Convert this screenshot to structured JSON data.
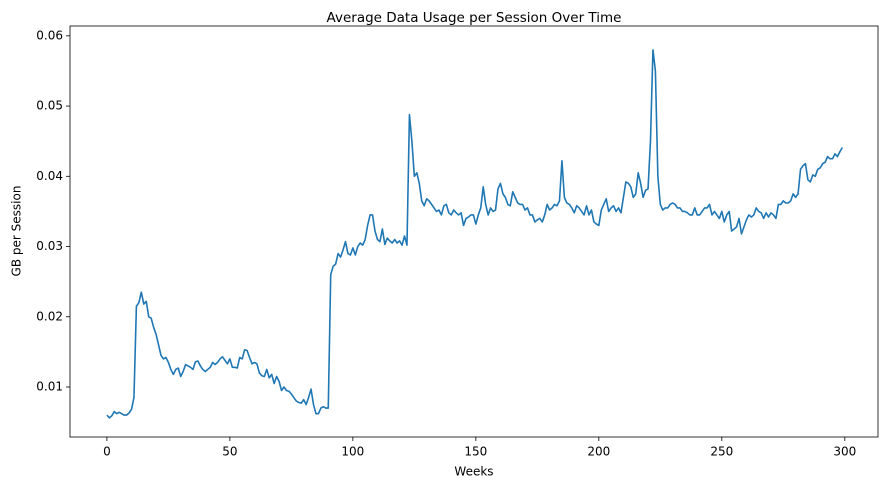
{
  "chart_data": {
    "type": "line",
    "title": "Average Data Usage per Session Over Time",
    "x_label": "Weeks",
    "y_label": "GB per Session",
    "x": [
      0,
      1,
      2,
      3,
      4,
      5,
      6,
      7,
      8,
      9,
      10,
      11,
      12,
      13,
      14,
      15,
      16,
      17,
      18,
      19,
      20,
      21,
      22,
      23,
      24,
      25,
      26,
      27,
      28,
      29,
      30,
      31,
      32,
      33,
      34,
      35,
      36,
      37,
      38,
      39,
      40,
      41,
      42,
      43,
      44,
      45,
      46,
      47,
      48,
      49,
      50,
      51,
      52,
      53,
      54,
      55,
      56,
      57,
      58,
      59,
      60,
      61,
      62,
      63,
      64,
      65,
      66,
      67,
      68,
      69,
      70,
      71,
      72,
      73,
      74,
      75,
      76,
      77,
      78,
      79,
      80,
      81,
      82,
      83,
      84,
      85,
      86,
      87,
      88,
      89,
      90,
      91,
      92,
      93,
      94,
      95,
      96,
      97,
      98,
      99,
      100,
      101,
      102,
      103,
      104,
      105,
      106,
      107,
      108,
      109,
      110,
      111,
      112,
      113,
      114,
      115,
      116,
      117,
      118,
      119,
      120,
      121,
      122,
      123,
      124,
      125,
      126,
      127,
      128,
      129,
      130,
      131,
      132,
      133,
      134,
      135,
      136,
      137,
      138,
      139,
      140,
      141,
      142,
      143,
      144,
      145,
      146,
      147,
      148,
      149,
      150,
      151,
      152,
      153,
      154,
      155,
      156,
      157,
      158,
      159,
      160,
      161,
      162,
      163,
      164,
      165,
      166,
      167,
      168,
      169,
      170,
      171,
      172,
      173,
      174,
      175,
      176,
      177,
      178,
      179,
      180,
      181,
      182,
      183,
      184,
      185,
      186,
      187,
      188,
      189,
      190,
      191,
      192,
      193,
      194,
      195,
      196,
      197,
      198,
      199,
      200,
      201,
      202,
      203,
      204,
      205,
      206,
      207,
      208,
      209,
      210,
      211,
      212,
      213,
      214,
      215,
      216,
      217,
      218,
      219,
      220,
      221,
      222,
      223,
      224,
      225,
      226,
      227,
      228,
      229,
      230,
      231,
      232,
      233,
      234,
      235,
      236,
      237,
      238,
      239,
      240,
      241,
      242,
      243,
      244,
      245,
      246,
      247,
      248,
      249,
      250,
      251,
      252,
      253,
      254,
      255,
      256,
      257,
      258,
      259,
      260,
      261,
      262,
      263,
      264,
      265,
      266,
      267,
      268,
      269,
      270,
      271,
      272,
      273,
      274,
      275,
      276,
      277,
      278,
      279,
      280,
      281,
      282,
      283,
      284,
      285,
      286,
      287,
      288,
      289,
      290,
      291,
      292,
      293,
      294,
      295,
      296,
      297,
      298,
      299
    ],
    "series": [
      {
        "color": "#1f77b4",
        "values": [
          0.006,
          0.0056,
          0.0059,
          0.0065,
          0.0062,
          0.0064,
          0.0062,
          0.006,
          0.006,
          0.0063,
          0.0068,
          0.0085,
          0.0215,
          0.022,
          0.0235,
          0.0218,
          0.0222,
          0.02,
          0.0198,
          0.0185,
          0.0175,
          0.016,
          0.0145,
          0.014,
          0.0142,
          0.0135,
          0.0125,
          0.0118,
          0.0125,
          0.0127,
          0.0115,
          0.0122,
          0.0132,
          0.013,
          0.0128,
          0.0125,
          0.0136,
          0.0137,
          0.013,
          0.0125,
          0.0122,
          0.0125,
          0.0128,
          0.0135,
          0.0132,
          0.0135,
          0.014,
          0.0143,
          0.0138,
          0.0133,
          0.014,
          0.0128,
          0.0128,
          0.0127,
          0.0142,
          0.014,
          0.0153,
          0.0152,
          0.0142,
          0.0133,
          0.0135,
          0.0133,
          0.012,
          0.0116,
          0.0115,
          0.0125,
          0.0113,
          0.0118,
          0.0105,
          0.0115,
          0.0108,
          0.0095,
          0.01,
          0.0095,
          0.0094,
          0.009,
          0.0085,
          0.008,
          0.0078,
          0.0077,
          0.0082,
          0.0075,
          0.0085,
          0.0097,
          0.0075,
          0.0062,
          0.0062,
          0.007,
          0.0072,
          0.007,
          0.007,
          0.026,
          0.0272,
          0.0275,
          0.029,
          0.0285,
          0.0295,
          0.0307,
          0.029,
          0.0288,
          0.0298,
          0.0288,
          0.03,
          0.0305,
          0.0302,
          0.031,
          0.033,
          0.0345,
          0.0345,
          0.0322,
          0.031,
          0.0307,
          0.0325,
          0.0303,
          0.0312,
          0.0308,
          0.0305,
          0.031,
          0.0305,
          0.0308,
          0.0302,
          0.0315,
          0.0302,
          0.0488,
          0.045,
          0.04,
          0.0405,
          0.039,
          0.0365,
          0.0358,
          0.0368,
          0.0365,
          0.036,
          0.0355,
          0.035,
          0.0352,
          0.0345,
          0.0358,
          0.036,
          0.0348,
          0.0345,
          0.0352,
          0.0348,
          0.0345,
          0.0348,
          0.033,
          0.034,
          0.0342,
          0.0345,
          0.0345,
          0.0332,
          0.0345,
          0.0355,
          0.0385,
          0.036,
          0.0345,
          0.0355,
          0.035,
          0.0352,
          0.0382,
          0.039,
          0.0375,
          0.037,
          0.036,
          0.0358,
          0.0378,
          0.037,
          0.0362,
          0.036,
          0.036,
          0.0352,
          0.0355,
          0.0345,
          0.0345,
          0.0335,
          0.0338,
          0.034,
          0.0335,
          0.0345,
          0.036,
          0.0352,
          0.0355,
          0.036,
          0.0358,
          0.0365,
          0.0422,
          0.037,
          0.0362,
          0.036,
          0.0355,
          0.0348,
          0.0358,
          0.0355,
          0.035,
          0.0345,
          0.0358,
          0.0345,
          0.0352,
          0.0335,
          0.0332,
          0.033,
          0.0352,
          0.036,
          0.0368,
          0.035,
          0.0355,
          0.0358,
          0.035,
          0.0355,
          0.0348,
          0.037,
          0.0392,
          0.039,
          0.0385,
          0.037,
          0.0375,
          0.0405,
          0.039,
          0.037,
          0.038,
          0.0382,
          0.045,
          0.058,
          0.055,
          0.04,
          0.036,
          0.0352,
          0.0355,
          0.0355,
          0.036,
          0.0362,
          0.036,
          0.0355,
          0.0355,
          0.035,
          0.035,
          0.0348,
          0.0345,
          0.0345,
          0.0355,
          0.0345,
          0.0345,
          0.035,
          0.0355,
          0.0355,
          0.036,
          0.0345,
          0.035,
          0.0345,
          0.034,
          0.035,
          0.0335,
          0.0345,
          0.035,
          0.0322,
          0.0325,
          0.0328,
          0.034,
          0.0318,
          0.0328,
          0.0338,
          0.0345,
          0.0342,
          0.0345,
          0.0355,
          0.035,
          0.0348,
          0.034,
          0.0348,
          0.0342,
          0.0348,
          0.0345,
          0.034,
          0.036,
          0.036,
          0.0365,
          0.0362,
          0.0362,
          0.0365,
          0.0375,
          0.037,
          0.0375,
          0.041,
          0.0415,
          0.0418,
          0.0395,
          0.0392,
          0.0402,
          0.04,
          0.041,
          0.0412,
          0.0418,
          0.042,
          0.0428,
          0.0425,
          0.0425,
          0.0432,
          0.0428,
          0.0435,
          0.0441
        ]
      }
    ],
    "xlim": [
      -15,
      313.5
    ],
    "ylim": [
      0.00288,
      0.0614
    ],
    "xticks": [
      0,
      50,
      100,
      150,
      200,
      250,
      300
    ],
    "yticks": [
      0.01,
      0.02,
      0.03,
      0.04,
      0.05,
      0.06
    ]
  }
}
